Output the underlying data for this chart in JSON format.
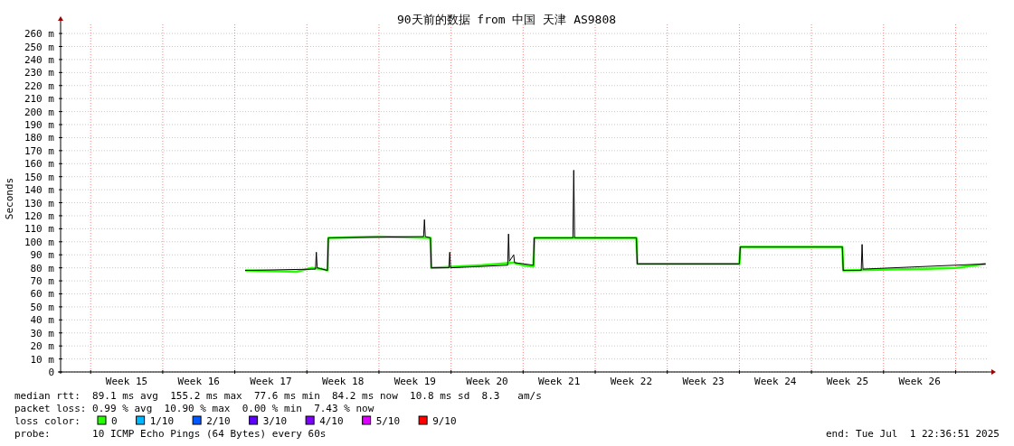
{
  "chart_data": {
    "type": "line",
    "title": "90天前的数据 from 中国 天津 AS9808",
    "ylabel": "Seconds",
    "legend_title": "loss color:",
    "xlim": [
      "2025-04-03T02:00",
      "2025-07-02T05:00"
    ],
    "xticks": [
      {
        "value": "2025-04-09T12:00",
        "label": "Week 15"
      },
      {
        "value": "2025-04-16T12:00",
        "label": "Week 16"
      },
      {
        "value": "2025-04-23T12:00",
        "label": "Week 17"
      },
      {
        "value": "2025-04-30T12:00",
        "label": "Week 18"
      },
      {
        "value": "2025-05-07T12:00",
        "label": "Week 19"
      },
      {
        "value": "2025-05-14T12:00",
        "label": "Week 20"
      },
      {
        "value": "2025-05-21T12:00",
        "label": "Week 21"
      },
      {
        "value": "2025-05-28T12:00",
        "label": "Week 22"
      },
      {
        "value": "2025-06-04T12:00",
        "label": "Week 23"
      },
      {
        "value": "2025-06-11T12:00",
        "label": "Week 24"
      },
      {
        "value": "2025-06-18T12:00",
        "label": "Week 25"
      },
      {
        "value": "2025-06-25T12:00",
        "label": "Week 26"
      }
    ],
    "ylim": [
      0,
      267
    ],
    "yticks": [
      0,
      {
        "value": 10,
        "label": "10 m"
      },
      {
        "value": 20,
        "label": "20 m"
      },
      {
        "value": 30,
        "label": "30 m"
      },
      {
        "value": 40,
        "label": "40 m"
      },
      {
        "value": 50,
        "label": "50 m"
      },
      {
        "value": 60,
        "label": "60 m"
      },
      {
        "value": 70,
        "label": "70 m"
      },
      {
        "value": 80,
        "label": "80 m"
      },
      {
        "value": 90,
        "label": "90 m"
      },
      {
        "value": 100,
        "label": "100 m"
      },
      {
        "value": 110,
        "label": "110 m"
      },
      {
        "value": 120,
        "label": "120 m"
      },
      {
        "value": 130,
        "label": "130 m"
      },
      {
        "value": 140,
        "label": "140 m"
      },
      {
        "value": 150,
        "label": "150 m"
      },
      {
        "value": 160,
        "label": "160 m"
      },
      {
        "value": 170,
        "label": "170 m"
      },
      {
        "value": 180,
        "label": "180 m"
      },
      {
        "value": 190,
        "label": "190 m"
      },
      {
        "value": 200,
        "label": "200 m"
      },
      {
        "value": 210,
        "label": "210 m"
      },
      {
        "value": 220,
        "label": "220 m"
      },
      {
        "value": 230,
        "label": "230 m"
      },
      {
        "value": 240,
        "label": "240 m"
      },
      {
        "value": 250,
        "label": "250 m"
      },
      {
        "value": 260,
        "label": "260 m"
      }
    ],
    "grid": "y",
    "legend": "bottom",
    "ref_lines": [
      {
        "axis": "x",
        "value": "2025-04-06",
        "color": "#ff8080",
        "line_style": "dotted"
      },
      {
        "axis": "x",
        "value": "2025-04-13",
        "color": "#ff8080",
        "line_style": "dotted"
      },
      {
        "axis": "x",
        "value": "2025-04-20",
        "color": "#ff8080",
        "line_style": "dotted"
      },
      {
        "axis": "x",
        "value": "2025-04-27",
        "color": "#ff8080",
        "line_style": "dotted"
      },
      {
        "axis": "x",
        "value": "2025-05-04",
        "color": "#ff8080",
        "line_style": "dotted"
      },
      {
        "axis": "x",
        "value": "2025-05-11",
        "color": "#ff8080",
        "line_style": "dotted"
      },
      {
        "axis": "x",
        "value": "2025-05-18",
        "color": "#ff8080",
        "line_style": "dotted"
      },
      {
        "axis": "x",
        "value": "2025-05-25",
        "color": "#ff8080",
        "line_style": "dotted"
      },
      {
        "axis": "x",
        "value": "2025-06-01",
        "color": "#ff8080",
        "line_style": "dotted"
      },
      {
        "axis": "x",
        "value": "2025-06-08",
        "color": "#ff8080",
        "line_style": "dotted"
      },
      {
        "axis": "x",
        "value": "2025-06-15",
        "color": "#ff8080",
        "line_style": "dotted"
      },
      {
        "axis": "x",
        "value": "2025-06-22",
        "color": "#ff8080",
        "line_style": "dotted"
      },
      {
        "axis": "x",
        "value": "2025-06-29",
        "color": "#ff8080",
        "line_style": "dotted"
      }
    ],
    "annotations": [
      "median rtt:  89.1 ms avg  155.2 ms max  77.6 ms min  84.2 ms now  10.8 ms sd  8.3   am/s",
      "packet loss: 0.99 % avg  10.90 % max  0.00 % min  7.43 % now",
      "probe:       10 ICMP Echo Pings (64 Bytes) every 60s",
      "end: Tue Jul  1 22:36:51 2025"
    ],
    "series": [
      {
        "color": "#000000",
        "x": [
          "2025-04-21T00:00",
          "2025-04-27T20:00",
          "2025-04-27T22:00",
          "2025-04-28T00:00",
          "2025-04-29T00:00",
          "2025-04-29T02:00",
          "2025-05-08T08:00",
          "2025-05-08T10:00",
          "2025-05-08T12:00",
          "2025-05-09T00:00",
          "2025-05-09T02:00",
          "2025-05-10T19:00",
          "2025-05-10T21:00",
          "2025-05-10T23:00",
          "2025-05-16T12:00",
          "2025-05-16T14:00",
          "2025-05-16T16:00",
          "2025-05-17T02:00",
          "2025-05-17T04:00",
          "2025-05-19T00:00",
          "2025-05-19T02:00",
          "2025-05-22T20:00",
          "2025-05-22T22:00",
          "2025-05-23T00:00",
          "2025-05-29T00:00",
          "2025-05-29T02:00",
          "2025-06-08T00:00",
          "2025-06-08T02:00",
          "2025-06-18T00:00",
          "2025-06-18T02:00",
          "2025-06-19T20:00",
          "2025-06-19T22:00",
          "2025-06-20T00:00",
          "2025-07-01T22:00"
        ],
        "values": [
          78,
          79,
          92,
          80,
          78,
          103,
          104,
          117,
          104,
          103,
          80,
          80,
          92,
          80,
          82,
          106,
          85,
          90,
          84,
          82,
          103,
          103,
          155,
          103,
          103,
          83,
          83,
          96,
          96,
          78,
          78,
          98,
          79,
          83
        ]
      },
      {
        "name": "0",
        "color": "#26ff00",
        "x": [
          "2025-04-21T00:00",
          "2025-04-26T00:00",
          "2025-04-27T12:00",
          "2025-04-28T12:00",
          "2025-04-29T00:00",
          "2025-04-29T02:00",
          "2025-05-04T00:00",
          "2025-05-09T00:00",
          "2025-05-09T02:00",
          "2025-05-14T00:00",
          "2025-05-17T00:00",
          "2025-05-18T00:00",
          "2025-05-19T00:00",
          "2025-05-19T02:00",
          "2025-05-24T00:00",
          "2025-05-29T00:00",
          "2025-05-29T02:00",
          "2025-06-08T00:00",
          "2025-06-08T02:00",
          "2025-06-18T00:00",
          "2025-06-18T02:00",
          "2025-06-25T00:00",
          "2025-06-29T00:00",
          "2025-07-01T22:00"
        ],
        "values": [
          78,
          77,
          80,
          79,
          78,
          103,
          104,
          103,
          80,
          82,
          84,
          82,
          81,
          103,
          103,
          103,
          83,
          83,
          96,
          96,
          78,
          79,
          80,
          83
        ]
      },
      {
        "name": "1/10",
        "color": "#00b8ff"
      },
      {
        "name": "2/10",
        "color": "#0059ff"
      },
      {
        "name": "3/10",
        "color": "#5e00ff"
      },
      {
        "name": "4/10",
        "color": "#7e00ff"
      },
      {
        "name": "5/10",
        "color": "#dd00ff"
      },
      {
        "name": "9/10",
        "color": "#ff0000"
      }
    ]
  }
}
